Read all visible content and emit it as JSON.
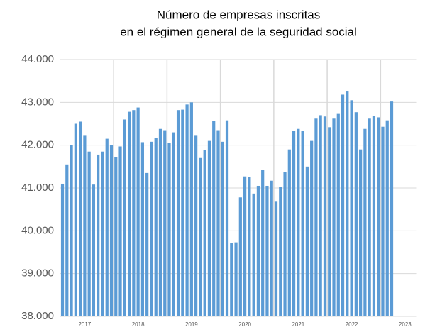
{
  "chart_data": {
    "type": "bar",
    "title": [
      "Número de empresas inscritas",
      "en el régimen general de la seguridad social"
    ],
    "categories": [
      null,
      null,
      null,
      null,
      null,
      "2017",
      null,
      null,
      null,
      null,
      null,
      null,
      null,
      null,
      null,
      null,
      null,
      "2018",
      null,
      null,
      null,
      null,
      null,
      null,
      null,
      null,
      null,
      null,
      null,
      "2019",
      null,
      null,
      null,
      null,
      null,
      null,
      null,
      null,
      null,
      null,
      null,
      "2020",
      null,
      null,
      null,
      null,
      null,
      null,
      null,
      null,
      null,
      null,
      null,
      "2021",
      null,
      null,
      null,
      null,
      null,
      null,
      null,
      null,
      null,
      null,
      null,
      "2022",
      null,
      null,
      null,
      null,
      null,
      null,
      null,
      null,
      null,
      null,
      null,
      "2023",
      null,
      null
    ],
    "values": [
      41100,
      41550,
      42000,
      42500,
      42550,
      42220,
      41850,
      41080,
      41780,
      41850,
      42150,
      42000,
      41720,
      41970,
      42600,
      42780,
      42820,
      42880,
      42070,
      41350,
      42080,
      42170,
      42380,
      42350,
      42050,
      42300,
      42820,
      42830,
      42950,
      43000,
      42220,
      41700,
      41880,
      42100,
      42570,
      42350,
      42080,
      42580,
      39720,
      39730,
      40780,
      41270,
      41250,
      40870,
      41050,
      41420,
      41050,
      41170,
      40680,
      41020,
      41370,
      41900,
      42330,
      42380,
      42330,
      41500,
      42100,
      42620,
      42700,
      42670,
      42420,
      42620,
      42730,
      43180,
      43270,
      43050,
      42770,
      41900,
      42380,
      42620,
      42680,
      42650,
      42430,
      42580,
      43020,
      null,
      null,
      null,
      null,
      null
    ],
    "color": "#5b9bd5",
    "ylim": [
      38000,
      44000
    ],
    "yticks": [
      {
        "value": 38000,
        "label": "38.000"
      },
      {
        "value": 39000,
        "label": "39.000"
      },
      {
        "value": 40000,
        "label": "40.000"
      },
      {
        "value": 41000,
        "label": "41.000"
      },
      {
        "value": 42000,
        "label": "42.000"
      },
      {
        "value": 43000,
        "label": "43.000"
      },
      {
        "value": 44000,
        "label": "44.000"
      }
    ],
    "grid": true
  }
}
